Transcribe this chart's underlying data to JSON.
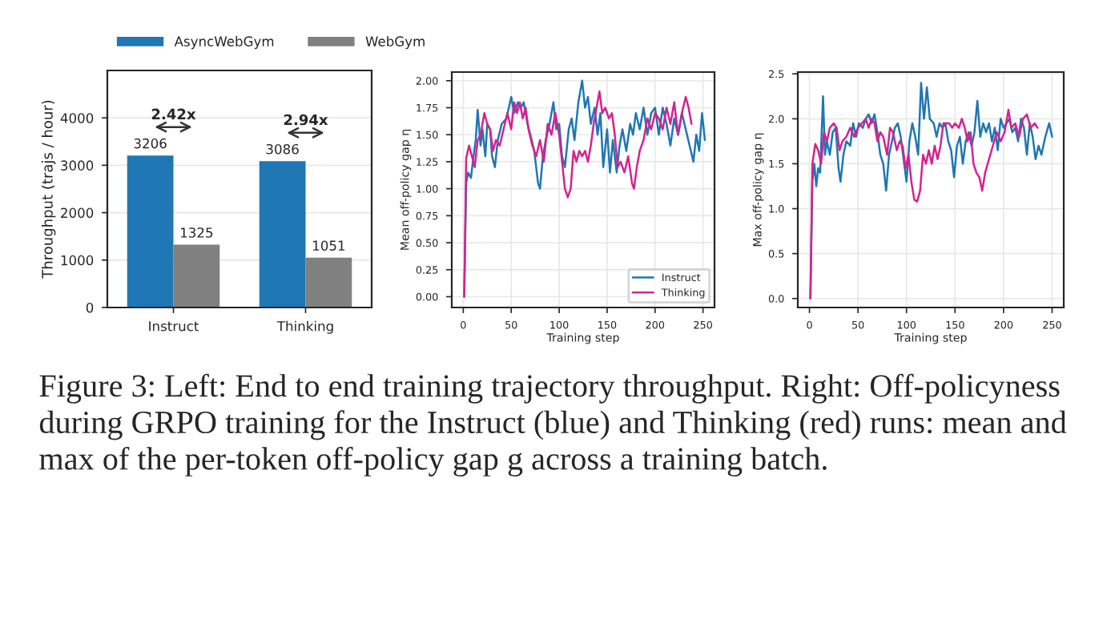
{
  "chart_data": [
    {
      "type": "bar",
      "categories": [
        "Instruct",
        "Thinking"
      ],
      "ylabel": "Throughput (trajs / hour)",
      "ylim": [
        0,
        5000
      ],
      "yticks": [
        0,
        1000,
        2000,
        3000,
        4000
      ],
      "grid": "y",
      "legend": "top",
      "data_labels": true,
      "series": [
        {
          "name": "AsyncWebGym",
          "color": "#1f77b4",
          "values": [
            3206,
            3086
          ]
        },
        {
          "name": "WebGym",
          "color": "#808080",
          "values": [
            1325,
            1051
          ]
        }
      ],
      "annotations": [
        "2.42x",
        "2.94x",
        "Figure 3: Left: End to end training trajectory throughput. Right: Off-policyness during GRPO training for the Instruct (blue) and Thinking (red) runs: mean and max of the per-token off-policy gap g across a training batch."
      ]
    },
    {
      "type": "line",
      "xlabel": "Training step",
      "ylabel": "Mean off-policy gap η",
      "xlim": [
        -12,
        262
      ],
      "xticks": [
        0,
        50,
        100,
        150,
        200,
        250
      ],
      "ylim": [
        -0.1,
        2.08
      ],
      "yticks": [
        {
          "value": 0,
          "label": "0.00"
        },
        {
          "value": 0.25,
          "label": "0.25"
        },
        {
          "value": 0.5,
          "label": "0.50"
        },
        {
          "value": 0.75,
          "label": "0.75"
        },
        {
          "value": 1,
          "label": "1.00"
        },
        {
          "value": 1.25,
          "label": "1.25"
        },
        {
          "value": 1.5,
          "label": "1.50"
        },
        {
          "value": 1.75,
          "label": "1.75"
        },
        {
          "value": 2,
          "label": "2.00"
        }
      ],
      "grid": true,
      "legend": "bottom right",
      "series": [
        {
          "name": "Instruct",
          "color": "#1f77b4",
          "x": [
            1,
            3,
            5,
            8,
            10,
            13,
            15,
            18,
            20,
            23,
            25,
            28,
            30,
            33,
            36,
            40,
            45,
            50,
            53,
            57,
            60,
            63,
            67,
            70,
            74,
            78,
            80,
            83,
            86,
            90,
            94,
            97,
            100,
            103,
            106,
            110,
            113,
            116,
            120,
            124,
            127,
            130,
            133,
            137,
            140,
            143,
            146,
            150,
            153,
            156,
            160,
            163,
            166,
            170,
            174,
            177,
            180,
            184,
            188,
            192,
            196,
            200,
            204,
            208,
            212,
            216,
            220,
            224,
            228,
            232,
            236,
            240,
            243,
            246,
            249,
            252
          ],
          "values": [
            0.0,
            1.05,
            1.15,
            1.1,
            1.25,
            1.45,
            1.73,
            1.4,
            1.55,
            1.3,
            1.6,
            1.55,
            1.3,
            1.2,
            1.45,
            1.6,
            1.65,
            1.85,
            1.7,
            1.8,
            1.75,
            1.8,
            1.6,
            1.5,
            1.35,
            1.05,
            1.0,
            1.3,
            1.45,
            1.6,
            1.8,
            1.55,
            1.6,
            1.3,
            1.2,
            1.55,
            1.65,
            1.45,
            1.8,
            2.0,
            1.75,
            1.85,
            1.6,
            1.75,
            1.5,
            1.7,
            1.2,
            1.55,
            1.15,
            1.45,
            1.15,
            1.4,
            1.55,
            1.35,
            1.6,
            1.5,
            1.7,
            1.55,
            1.75,
            1.5,
            1.7,
            1.75,
            1.5,
            1.75,
            1.6,
            1.4,
            1.65,
            1.5,
            1.7,
            1.55,
            1.4,
            1.25,
            1.5,
            1.35,
            1.7,
            1.45
          ]
        },
        {
          "name": "Thinking",
          "color": "#d4238f",
          "x": [
            1,
            3,
            6,
            9,
            12,
            15,
            18,
            22,
            25,
            28,
            31,
            34,
            38,
            42,
            46,
            50,
            53,
            56,
            59,
            62,
            65,
            68,
            72,
            76,
            80,
            84,
            88,
            92,
            96,
            100,
            103,
            106,
            109,
            112,
            115,
            118,
            121,
            124,
            127,
            130,
            133,
            136,
            139,
            142,
            145,
            148,
            152,
            155,
            158,
            161,
            164,
            168,
            172,
            176,
            178,
            181,
            184,
            188,
            192,
            196,
            200,
            204,
            208,
            212,
            216,
            220,
            224,
            228,
            232,
            235,
            238
          ],
          "values": [
            0.0,
            1.28,
            1.4,
            1.3,
            1.2,
            1.45,
            1.5,
            1.7,
            1.6,
            1.55,
            1.35,
            1.45,
            1.4,
            1.55,
            1.7,
            1.55,
            1.8,
            1.7,
            1.8,
            1.65,
            1.75,
            1.55,
            1.4,
            1.3,
            1.45,
            1.25,
            1.6,
            1.5,
            1.7,
            1.5,
            1.25,
            1.0,
            0.92,
            1.0,
            1.35,
            1.25,
            1.35,
            1.3,
            1.35,
            1.25,
            1.4,
            1.6,
            1.75,
            1.9,
            1.7,
            1.75,
            1.65,
            1.7,
            1.5,
            1.2,
            1.25,
            1.15,
            1.3,
            1.05,
            1.0,
            1.2,
            1.35,
            1.45,
            1.65,
            1.55,
            1.7,
            1.65,
            1.55,
            1.75,
            1.6,
            1.8,
            1.5,
            1.7,
            1.85,
            1.75,
            1.6
          ]
        }
      ]
    },
    {
      "type": "line",
      "xlabel": "Training step",
      "ylabel": "Max off-policy gap η",
      "xlim": [
        -12,
        262
      ],
      "xticks": [
        0,
        50,
        100,
        150,
        200,
        250
      ],
      "ylim": [
        -0.1,
        2.52
      ],
      "yticks": [
        {
          "value": 0,
          "label": "0.0"
        },
        {
          "value": 0.5,
          "label": "0.5"
        },
        {
          "value": 1,
          "label": "1.0"
        },
        {
          "value": 1.5,
          "label": "1.5"
        },
        {
          "value": 2,
          "label": "2.0"
        },
        {
          "value": 2.5,
          "label": "2.5"
        }
      ],
      "grid": true,
      "series": [
        {
          "color": "#1f77b4",
          "x": [
            1,
            3,
            5,
            7,
            9,
            11,
            14,
            16,
            18,
            21,
            24,
            27,
            30,
            32,
            35,
            38,
            42,
            45,
            48,
            51,
            55,
            58,
            61,
            64,
            67,
            70,
            73,
            76,
            79,
            82,
            85,
            88,
            91,
            94,
            97,
            100,
            103,
            106,
            109,
            112,
            115,
            118,
            121,
            124,
            128,
            131,
            134,
            137,
            140,
            143,
            146,
            149,
            152,
            155,
            158,
            161,
            164,
            167,
            170,
            173,
            176,
            179,
            182,
            185,
            188,
            191,
            194,
            197,
            200,
            203,
            206,
            209,
            212,
            215,
            218,
            221,
            224,
            227,
            230,
            233,
            236,
            239,
            243,
            247,
            250
          ],
          "values": [
            0.0,
            1.3,
            1.5,
            1.25,
            1.45,
            1.4,
            2.25,
            1.6,
            1.75,
            1.6,
            1.85,
            1.9,
            1.45,
            1.3,
            1.6,
            1.75,
            1.7,
            1.95,
            1.8,
            1.95,
            1.9,
            2.0,
            2.05,
            1.95,
            2.05,
            1.85,
            1.6,
            1.5,
            1.2,
            1.6,
            1.75,
            1.9,
            1.95,
            1.8,
            1.55,
            1.3,
            1.75,
            1.95,
            1.8,
            1.6,
            2.4,
            2.0,
            2.35,
            2.0,
            1.95,
            1.8,
            1.95,
            1.9,
            1.95,
            1.75,
            1.65,
            1.35,
            1.7,
            1.8,
            1.5,
            1.75,
            1.85,
            1.7,
            1.85,
            2.2,
            1.8,
            1.95,
            1.85,
            1.95,
            1.75,
            1.9,
            1.65,
            2.0,
            1.9,
            1.95,
            2.0,
            1.85,
            1.9,
            1.75,
            2.0,
            1.9,
            1.6,
            1.95,
            1.8,
            1.55,
            1.7,
            1.6,
            1.8,
            1.95,
            1.8
          ]
        },
        {
          "color": "#d4238f",
          "x": [
            1,
            3,
            6,
            9,
            12,
            15,
            18,
            21,
            25,
            28,
            31,
            34,
            38,
            42,
            46,
            50,
            54,
            58,
            61,
            64,
            67,
            70,
            73,
            76,
            80,
            83,
            86,
            90,
            93,
            96,
            99,
            102,
            105,
            108,
            111,
            114,
            117,
            120,
            123,
            126,
            129,
            132,
            135,
            138,
            141,
            144,
            147,
            150,
            154,
            157,
            160,
            163,
            166,
            169,
            172,
            175,
            178,
            181,
            185,
            189,
            193,
            197,
            201,
            205,
            208,
            212,
            216,
            220,
            224,
            228,
            232,
            235
          ],
          "values": [
            0.0,
            1.5,
            1.72,
            1.65,
            1.5,
            1.85,
            1.75,
            1.9,
            1.95,
            1.9,
            1.65,
            1.75,
            1.8,
            1.9,
            1.8,
            1.9,
            1.95,
            2.0,
            1.9,
            2.0,
            1.95,
            1.75,
            1.85,
            1.8,
            1.6,
            1.9,
            1.85,
            1.65,
            1.75,
            1.7,
            1.45,
            1.6,
            1.3,
            1.1,
            1.08,
            1.2,
            1.6,
            1.5,
            1.65,
            1.5,
            1.7,
            1.55,
            1.7,
            1.95,
            1.95,
            1.95,
            1.9,
            1.95,
            1.9,
            2.0,
            1.9,
            1.75,
            1.85,
            1.5,
            1.4,
            1.35,
            1.2,
            1.4,
            1.55,
            1.7,
            1.85,
            1.75,
            1.85,
            2.1,
            1.9,
            1.95,
            1.8,
            2.0,
            2.05,
            1.9,
            1.95,
            1.9
          ]
        }
      ]
    }
  ]
}
